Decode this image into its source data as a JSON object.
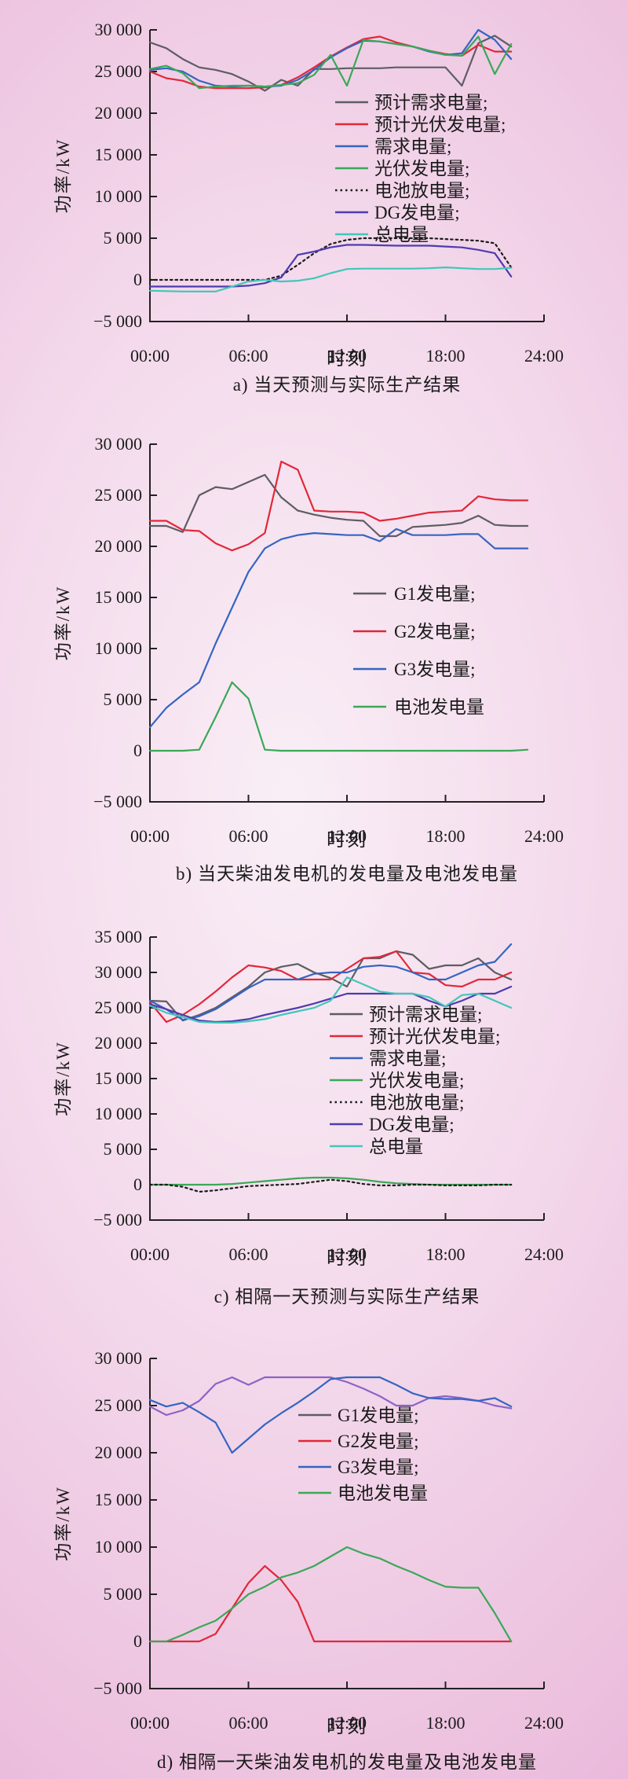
{
  "page": {
    "background": {
      "center": "#f9eef6",
      "edge": "#e7abd5"
    },
    "axis_color": "#222222",
    "text_color": "#1b1b1b"
  },
  "chart_data": [
    {
      "type": "line",
      "title": "a) 当天预测与实际生产结果",
      "xlabel": "时刻",
      "ylabel": "功率/kW",
      "xlim": [
        0,
        24
      ],
      "ylim": [
        -5000,
        30000
      ],
      "grid": false,
      "legend_position": "inside-right",
      "xticks": {
        "values": [
          0,
          6,
          12,
          18,
          24
        ],
        "labels": [
          "00:00",
          "06:00",
          "12:00",
          "18:00",
          "24:00"
        ]
      },
      "yticks": {
        "values": [
          -5000,
          0,
          5000,
          10000,
          15000,
          20000,
          25000,
          30000
        ],
        "labels": [
          "−5 000",
          "0",
          "5 000",
          "10 000",
          "15 000",
          "20 000",
          "25 000",
          "30 000"
        ]
      },
      "x": [
        0,
        1,
        2,
        3,
        4,
        5,
        6,
        7,
        8,
        9,
        10,
        11,
        12,
        13,
        14,
        15,
        16,
        17,
        18,
        19,
        20,
        21,
        22
      ],
      "series": [
        {
          "name": "预计需求电量;",
          "color": "#5e5d63",
          "style": "solid",
          "values": [
            28500,
            27800,
            26500,
            25500,
            25200,
            24700,
            23800,
            22700,
            24000,
            23300,
            25300,
            25300,
            25400,
            25400,
            25400,
            25500,
            25500,
            25500,
            25500,
            23300,
            28400,
            29300,
            28000
          ]
        },
        {
          "name": "预计光伏发电量;",
          "color": "#e12839",
          "style": "solid",
          "values": [
            25000,
            24200,
            23900,
            23200,
            23000,
            23000,
            23000,
            23100,
            23400,
            24300,
            25500,
            26800,
            27900,
            28900,
            29200,
            28500,
            28000,
            27500,
            27100,
            26900,
            28200,
            27400,
            27400
          ]
        },
        {
          "name": "需求电量;",
          "color": "#3565c1",
          "style": "solid",
          "values": [
            25200,
            25400,
            25000,
            23900,
            23300,
            23200,
            23300,
            23200,
            23300,
            24000,
            25200,
            26700,
            27800,
            28700,
            28600,
            28300,
            28000,
            27400,
            27000,
            27200,
            30000,
            28800,
            26500
          ]
        },
        {
          "name": "光伏发电量;",
          "color": "#3aa857",
          "style": "solid",
          "values": [
            25300,
            25700,
            24800,
            23000,
            23200,
            23300,
            23300,
            23200,
            23400,
            23600,
            24600,
            27000,
            23300,
            28800,
            28600,
            28300,
            28000,
            27500,
            27000,
            26900,
            29200,
            24700,
            28300
          ]
        },
        {
          "name": "电池放电量;",
          "color": "#1c1c1c",
          "style": "dotted",
          "values": [
            0,
            0,
            0,
            0,
            0,
            0,
            0,
            0,
            500,
            1800,
            3200,
            4300,
            4800,
            5000,
            5000,
            5000,
            5000,
            5000,
            4900,
            4800,
            4700,
            4400,
            1500
          ]
        },
        {
          "name": "DG发电量;",
          "color": "#4e3cae",
          "style": "solid",
          "values": [
            -800,
            -800,
            -800,
            -800,
            -800,
            -800,
            -700,
            -400,
            300,
            3000,
            3400,
            3900,
            4200,
            4200,
            4150,
            4100,
            4100,
            4100,
            4000,
            3900,
            3600,
            3200,
            400
          ]
        },
        {
          "name": "总电量",
          "color": "#43c6ba",
          "style": "solid",
          "values": [
            -1300,
            -1350,
            -1400,
            -1400,
            -1400,
            -800,
            -200,
            0,
            -200,
            -100,
            200,
            800,
            1300,
            1350,
            1350,
            1350,
            1350,
            1400,
            1500,
            1400,
            1300,
            1300,
            1450
          ]
        }
      ]
    },
    {
      "type": "line",
      "title": "b) 当天柴油发电机的发电量及电池发电量",
      "xlabel": "时刻",
      "ylabel": "功率/kW",
      "xlim": [
        0,
        24
      ],
      "ylim": [
        -5000,
        30000
      ],
      "grid": false,
      "legend_position": "inside-right",
      "xticks": {
        "values": [
          0,
          6,
          12,
          18,
          24
        ],
        "labels": [
          "00:00",
          "06:00",
          "12:00",
          "18:00",
          "24:00"
        ]
      },
      "yticks": {
        "values": [
          -5000,
          0,
          5000,
          10000,
          15000,
          20000,
          25000,
          30000
        ],
        "labels": [
          "−5 000",
          "0",
          "5 000",
          "10 000",
          "15 000",
          "20 000",
          "25 000",
          "30 000"
        ]
      },
      "x": [
        0,
        1,
        2,
        3,
        4,
        5,
        6,
        7,
        8,
        9,
        10,
        11,
        12,
        13,
        14,
        15,
        16,
        17,
        18,
        19,
        20,
        21,
        22,
        23
      ],
      "series": [
        {
          "name": "G1发电量;",
          "color": "#5e5d63",
          "style": "solid",
          "values": [
            22000,
            22000,
            21400,
            25000,
            25800,
            25600,
            26300,
            27000,
            24800,
            23500,
            23100,
            22800,
            22600,
            22500,
            21000,
            21000,
            21900,
            22000,
            22100,
            22300,
            23000,
            22100,
            22000,
            22000
          ]
        },
        {
          "name": "G2发电量;",
          "color": "#e12839",
          "style": "solid",
          "values": [
            22500,
            22500,
            21600,
            21500,
            20300,
            19600,
            20200,
            21300,
            28300,
            27500,
            23500,
            23400,
            23400,
            23300,
            22500,
            22700,
            23000,
            23300,
            23400,
            23500,
            24900,
            24600,
            24500,
            24500
          ]
        },
        {
          "name": "G3发电量;",
          "color": "#3565c1",
          "style": "solid",
          "values": [
            2300,
            4200,
            5500,
            6700,
            10500,
            14000,
            17500,
            19800,
            20700,
            21100,
            21300,
            21200,
            21100,
            21100,
            20500,
            21700,
            21100,
            21100,
            21100,
            21200,
            21200,
            19800,
            19800,
            19800
          ]
        },
        {
          "name": "电池发电量",
          "color": "#3aa857",
          "style": "solid",
          "values": [
            0,
            0,
            0,
            100,
            3300,
            6700,
            5100,
            100,
            0,
            0,
            0,
            0,
            0,
            0,
            0,
            0,
            0,
            0,
            0,
            0,
            0,
            0,
            0,
            100
          ]
        }
      ]
    },
    {
      "type": "line",
      "title": "c) 相隔一天预测与实际生产结果",
      "xlabel": "时刻",
      "ylabel": "功率/kW",
      "xlim": [
        0,
        24
      ],
      "ylim": [
        -5000,
        35000
      ],
      "grid": false,
      "legend_position": "inside-right",
      "xticks": {
        "values": [
          0,
          6,
          12,
          18,
          24
        ],
        "labels": [
          "00:00",
          "06:00",
          "12:00",
          "18:00",
          "24:00"
        ]
      },
      "yticks": {
        "values": [
          -5000,
          0,
          5000,
          10000,
          15000,
          20000,
          25000,
          30000,
          35000
        ],
        "labels": [
          "−5 000",
          "0",
          "5 000",
          "10 000",
          "15 000",
          "20 000",
          "25 000",
          "30 000",
          "35 000"
        ]
      },
      "x": [
        0,
        1,
        2,
        3,
        4,
        5,
        6,
        7,
        8,
        9,
        10,
        11,
        12,
        13,
        14,
        15,
        16,
        17,
        18,
        19,
        20,
        21,
        22
      ],
      "series": [
        {
          "name": "预计需求电量;",
          "color": "#5e5d63",
          "style": "solid",
          "values": [
            26000,
            25900,
            23200,
            24000,
            25000,
            26500,
            28000,
            30000,
            30800,
            31200,
            30000,
            29200,
            28000,
            32000,
            32000,
            33000,
            32500,
            30500,
            31000,
            31000,
            32000,
            30000,
            29000
          ]
        },
        {
          "name": "预计光伏发电量;",
          "color": "#e12839",
          "style": "solid",
          "values": [
            25800,
            23000,
            24000,
            25500,
            27300,
            29300,
            31000,
            30700,
            30200,
            29000,
            29000,
            29000,
            30500,
            32000,
            32200,
            33000,
            30000,
            29800,
            28200,
            28000,
            29000,
            29000,
            30000
          ]
        },
        {
          "name": "需求电量;",
          "color": "#3565c1",
          "style": "solid",
          "values": [
            26000,
            24800,
            23300,
            23800,
            24800,
            26300,
            27800,
            29000,
            29000,
            29000,
            29800,
            30000,
            30000,
            30800,
            31000,
            30800,
            30000,
            29000,
            29000,
            30000,
            31000,
            31500,
            34000
          ]
        },
        {
          "name": "光伏发电量;",
          "color": "#3aa857",
          "style": "solid",
          "values": [
            0,
            0,
            0,
            0,
            0,
            100,
            300,
            500,
            700,
            900,
            1000,
            1000,
            900,
            700,
            400,
            200,
            100,
            0,
            0,
            0,
            0,
            0,
            0
          ]
        },
        {
          "name": "电池放电量;",
          "color": "#1c1c1c",
          "style": "dotted",
          "values": [
            0,
            0,
            -300,
            -1000,
            -800,
            -500,
            -200,
            -100,
            0,
            100,
            400,
            700,
            500,
            100,
            -100,
            -100,
            0,
            0,
            -100,
            -100,
            -100,
            0,
            0
          ]
        },
        {
          "name": "DG发电量;",
          "color": "#4e3cae",
          "style": "solid",
          "values": [
            25500,
            24800,
            24000,
            23200,
            23000,
            23100,
            23400,
            24000,
            24500,
            25000,
            25600,
            26300,
            27000,
            27000,
            27000,
            27000,
            27000,
            26000,
            25200,
            26000,
            27000,
            27000,
            28000
          ]
        },
        {
          "name": "总电量",
          "color": "#43c6ba",
          "style": "solid",
          "values": [
            25300,
            24300,
            23700,
            23000,
            22900,
            22900,
            23100,
            23400,
            24000,
            24500,
            25000,
            26000,
            29300,
            28300,
            27300,
            27000,
            27000,
            26500,
            25200,
            26800,
            27000,
            26000,
            25000
          ]
        }
      ]
    },
    {
      "type": "line",
      "title": "d) 相隔一天柴油发电机的发电量及电池发电量",
      "xlabel": "时刻",
      "ylabel": "功率/kW",
      "xlim": [
        0,
        24
      ],
      "ylim": [
        -5000,
        30000
      ],
      "grid": false,
      "legend_position": "inside-right",
      "xticks": {
        "values": [
          0,
          6,
          12,
          18,
          24
        ],
        "labels": [
          "00:00",
          "06:00",
          "12:00",
          "18:00",
          "24:00"
        ]
      },
      "yticks": {
        "values": [
          -5000,
          0,
          5000,
          10000,
          15000,
          20000,
          25000,
          30000
        ],
        "labels": [
          "−5 000",
          "0",
          "5 000",
          "10 000",
          "15 000",
          "20 000",
          "25 000",
          "30 000"
        ]
      },
      "x": [
        0,
        1,
        2,
        3,
        4,
        5,
        6,
        7,
        8,
        9,
        10,
        11,
        12,
        13,
        14,
        15,
        16,
        17,
        18,
        19,
        20,
        21,
        22
      ],
      "series": [
        {
          "name": "G1发电量;",
          "color": "#8e62c6",
          "legend_color": "#5e5d63",
          "style": "solid",
          "values": [
            24900,
            24000,
            24500,
            25500,
            27300,
            28000,
            27200,
            28000,
            28000,
            28000,
            28000,
            28000,
            27500,
            26800,
            26000,
            25000,
            25000,
            25800,
            26000,
            25800,
            25500,
            25000,
            24700
          ]
        },
        {
          "name": "G2发电量;",
          "color": "#e12839",
          "style": "solid",
          "values": [
            0,
            0,
            0,
            0,
            800,
            3500,
            6200,
            8000,
            6500,
            4200,
            0,
            0,
            0,
            0,
            0,
            0,
            0,
            0,
            0,
            0,
            0,
            0,
            0
          ]
        },
        {
          "name": "G3发电量;",
          "color": "#3565c1",
          "style": "solid",
          "values": [
            25600,
            24900,
            25300,
            24300,
            23200,
            20000,
            21500,
            23000,
            24200,
            25300,
            26500,
            27800,
            28000,
            28000,
            28000,
            27200,
            26300,
            25800,
            25700,
            25700,
            25500,
            25800,
            24900
          ]
        },
        {
          "name": "电池发电量",
          "color": "#3aa857",
          "style": "solid",
          "values": [
            0,
            0,
            700,
            1500,
            2200,
            3500,
            5000,
            5800,
            6800,
            7300,
            8000,
            9000,
            10000,
            9300,
            8800,
            8000,
            7300,
            6500,
            5800,
            5700,
            5700,
            3000,
            0
          ]
        }
      ]
    }
  ]
}
